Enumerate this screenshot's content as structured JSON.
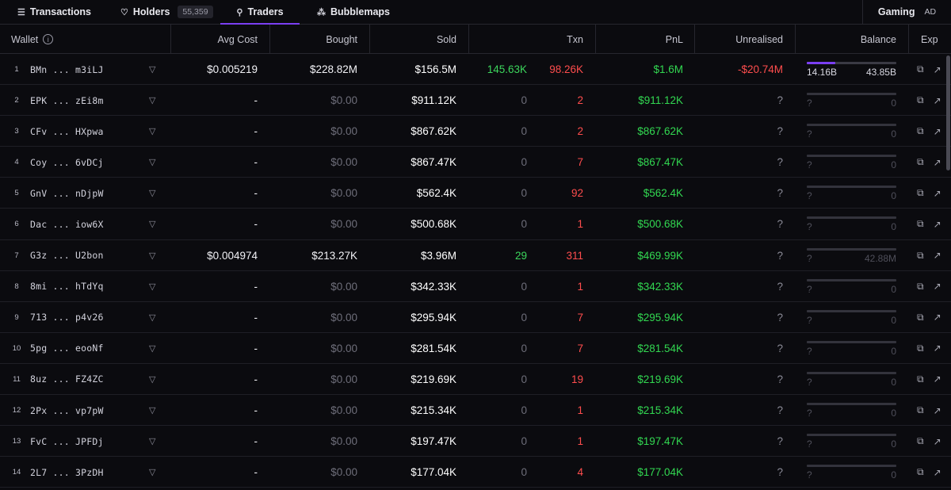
{
  "tabs": [
    {
      "label": "Transactions",
      "icon": "list-icon"
    },
    {
      "label": "Holders",
      "icon": "heart-icon",
      "badge": "55,359"
    },
    {
      "label": "Traders",
      "icon": "medal-icon",
      "active": true
    },
    {
      "label": "Bubblemaps",
      "icon": "bubbles-icon"
    }
  ],
  "right_tab": {
    "label": "Gaming",
    "ad": "AD"
  },
  "columns": {
    "wallet": "Wallet",
    "avg_cost": "Avg Cost",
    "bought": "Bought",
    "sold": "Sold",
    "txn": "Txn",
    "pnl": "PnL",
    "unrealised": "Unrealised",
    "balance": "Balance",
    "exp": "Exp"
  },
  "accent": "#7b3ff2",
  "rows": [
    {
      "rank": "1",
      "wallet_start": "BMn",
      "wallet_end": "m3iLJ",
      "avg_cost": "$0.005219",
      "bought": "$228.82M",
      "sold": "$156.5M",
      "buys": "145.63K",
      "sells": "98.26K",
      "pnl": "$1.6M",
      "unrealised": "-$20.74M",
      "bal_left": "14.16B",
      "bal_right": "43.85B",
      "bal_fraction": 0.32
    },
    {
      "rank": "2",
      "wallet_start": "EPK",
      "wallet_end": "zEi8m",
      "avg_cost": "-",
      "bought": "$0.00",
      "sold": "$911.12K",
      "buys": "0",
      "sells": "2",
      "pnl": "$911.12K",
      "unrealised": "?",
      "bal_left": "?",
      "bal_right": "0",
      "bal_fraction": 0
    },
    {
      "rank": "3",
      "wallet_start": "CFv",
      "wallet_end": "HXpwa",
      "avg_cost": "-",
      "bought": "$0.00",
      "sold": "$867.62K",
      "buys": "0",
      "sells": "2",
      "pnl": "$867.62K",
      "unrealised": "?",
      "bal_left": "?",
      "bal_right": "0",
      "bal_fraction": 0
    },
    {
      "rank": "4",
      "wallet_start": "Coy",
      "wallet_end": "6vDCj",
      "avg_cost": "-",
      "bought": "$0.00",
      "sold": "$867.47K",
      "buys": "0",
      "sells": "7",
      "pnl": "$867.47K",
      "unrealised": "?",
      "bal_left": "?",
      "bal_right": "0",
      "bal_fraction": 0
    },
    {
      "rank": "5",
      "wallet_start": "GnV",
      "wallet_end": "nDjpW",
      "avg_cost": "-",
      "bought": "$0.00",
      "sold": "$562.4K",
      "buys": "0",
      "sells": "92",
      "pnl": "$562.4K",
      "unrealised": "?",
      "bal_left": "?",
      "bal_right": "0",
      "bal_fraction": 0
    },
    {
      "rank": "6",
      "wallet_start": "Dac",
      "wallet_end": "iow6X",
      "avg_cost": "-",
      "bought": "$0.00",
      "sold": "$500.68K",
      "buys": "0",
      "sells": "1",
      "pnl": "$500.68K",
      "unrealised": "?",
      "bal_left": "?",
      "bal_right": "0",
      "bal_fraction": 0
    },
    {
      "rank": "7",
      "wallet_start": "G3z",
      "wallet_end": "U2bon",
      "avg_cost": "$0.004974",
      "bought": "$213.27K",
      "sold": "$3.96M",
      "buys": "29",
      "sells": "311",
      "pnl": "$469.99K",
      "unrealised": "?",
      "bal_left": "?",
      "bal_right": "42.88M",
      "bal_fraction": 0
    },
    {
      "rank": "8",
      "wallet_start": "8mi",
      "wallet_end": "hTdYq",
      "avg_cost": "-",
      "bought": "$0.00",
      "sold": "$342.33K",
      "buys": "0",
      "sells": "1",
      "pnl": "$342.33K",
      "unrealised": "?",
      "bal_left": "?",
      "bal_right": "0",
      "bal_fraction": 0
    },
    {
      "rank": "9",
      "wallet_start": "713",
      "wallet_end": "p4v26",
      "avg_cost": "-",
      "bought": "$0.00",
      "sold": "$295.94K",
      "buys": "0",
      "sells": "7",
      "pnl": "$295.94K",
      "unrealised": "?",
      "bal_left": "?",
      "bal_right": "0",
      "bal_fraction": 0
    },
    {
      "rank": "10",
      "wallet_start": "5pg",
      "wallet_end": "eooNf",
      "avg_cost": "-",
      "bought": "$0.00",
      "sold": "$281.54K",
      "buys": "0",
      "sells": "7",
      "pnl": "$281.54K",
      "unrealised": "?",
      "bal_left": "?",
      "bal_right": "0",
      "bal_fraction": 0
    },
    {
      "rank": "11",
      "wallet_start": "8uz",
      "wallet_end": "FZ4ZC",
      "avg_cost": "-",
      "bought": "$0.00",
      "sold": "$219.69K",
      "buys": "0",
      "sells": "19",
      "pnl": "$219.69K",
      "unrealised": "?",
      "bal_left": "?",
      "bal_right": "0",
      "bal_fraction": 0
    },
    {
      "rank": "12",
      "wallet_start": "2Px",
      "wallet_end": "vp7pW",
      "avg_cost": "-",
      "bought": "$0.00",
      "sold": "$215.34K",
      "buys": "0",
      "sells": "1",
      "pnl": "$215.34K",
      "unrealised": "?",
      "bal_left": "?",
      "bal_right": "0",
      "bal_fraction": 0
    },
    {
      "rank": "13",
      "wallet_start": "FvC",
      "wallet_end": "JPFDj",
      "avg_cost": "-",
      "bought": "$0.00",
      "sold": "$197.47K",
      "buys": "0",
      "sells": "1",
      "pnl": "$197.47K",
      "unrealised": "?",
      "bal_left": "?",
      "bal_right": "0",
      "bal_fraction": 0
    },
    {
      "rank": "14",
      "wallet_start": "2L7",
      "wallet_end": "3PzDH",
      "avg_cost": "-",
      "bought": "$0.00",
      "sold": "$177.04K",
      "buys": "0",
      "sells": "4",
      "pnl": "$177.04K",
      "unrealised": "?",
      "bal_left": "?",
      "bal_right": "0",
      "bal_fraction": 0
    }
  ]
}
